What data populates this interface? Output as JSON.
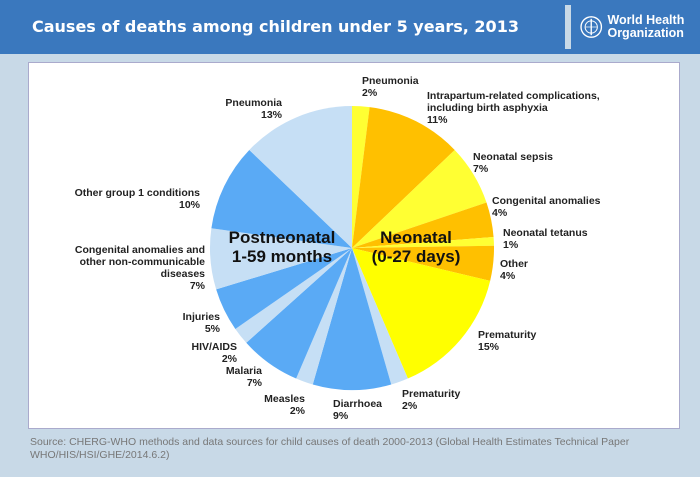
{
  "header": {
    "title": "Causes of deaths among children under 5 years, 2013",
    "logo_text": "World Health Organization"
  },
  "chart_data": {
    "type": "pie",
    "title": "Causes of deaths among children under 5 years, 2013",
    "groups": [
      {
        "name": "Neonatal (0-27 days)",
        "line1": "Neonatal",
        "line2": "(0-27 days)"
      },
      {
        "name": "Postneonatal 1-59 months",
        "line1": "Postneonatal",
        "line2": "1-59 months"
      }
    ],
    "slices": [
      {
        "label": "Pneumonia",
        "value": 2,
        "group": "Neonatal",
        "color": "#ffff33"
      },
      {
        "label": "Intrapartum-related complications, including birth asphyxia",
        "value": 11,
        "group": "Neonatal",
        "color": "#ffc000"
      },
      {
        "label": "Neonatal sepsis",
        "value": 7,
        "group": "Neonatal",
        "color": "#ffff33"
      },
      {
        "label": "Congenital anomalies",
        "value": 4,
        "group": "Neonatal",
        "color": "#ffc000"
      },
      {
        "label": "Neonatal tetanus",
        "value": 1,
        "group": "Neonatal",
        "color": "#ffff33"
      },
      {
        "label": "Other",
        "value": 4,
        "group": "Neonatal",
        "color": "#ffc000"
      },
      {
        "label": "Prematurity",
        "value": 15,
        "group": "Neonatal",
        "color": "#ffff00"
      },
      {
        "label": "Prematurity",
        "value": 2,
        "group": "Postneonatal",
        "color": "#c6dff5"
      },
      {
        "label": "Diarrhoea",
        "value": 9,
        "group": "Postneonatal",
        "color": "#5aaaf5"
      },
      {
        "label": "Measles",
        "value": 2,
        "group": "Postneonatal",
        "color": "#c6dff5"
      },
      {
        "label": "Malaria",
        "value": 7,
        "group": "Postneonatal",
        "color": "#5aaaf5"
      },
      {
        "label": "HIV/AIDS",
        "value": 2,
        "group": "Postneonatal",
        "color": "#c6dff5"
      },
      {
        "label": "Injuries",
        "value": 5,
        "group": "Postneonatal",
        "color": "#5aaaf5"
      },
      {
        "label": "Congenital anomalies and other non-communicable diseases",
        "value": 7,
        "group": "Postneonatal",
        "color": "#c6dff5"
      },
      {
        "label": "Other group 1 conditions",
        "value": 10,
        "group": "Postneonatal",
        "color": "#5aaaf5"
      },
      {
        "label": "Pneumonia",
        "value": 13,
        "group": "Postneonatal",
        "color": "#c6dff5"
      }
    ],
    "unit": "%"
  },
  "source": "Source: CHERG-WHO methods and data sources for child causes of death 2000-2013 (Global Health Estimates Technical Paper WHO/HIS/HSI/GHE/2014.6.2)"
}
